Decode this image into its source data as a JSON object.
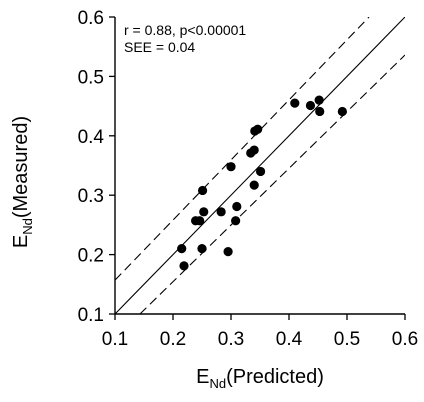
{
  "chart_data": {
    "type": "scatter",
    "title": "",
    "xlabel": {
      "main": "E",
      "sub": "Nd",
      "rest": "(Predicted)"
    },
    "ylabel": {
      "main": "E",
      "sub": "Nd",
      "rest": "(Measured)"
    },
    "xlim": [
      0.1,
      0.6
    ],
    "ylim": [
      0.1,
      0.6
    ],
    "x_ticks": [
      "0.1",
      "0.2",
      "0.3",
      "0.4",
      "0.5",
      "0.6"
    ],
    "y_ticks": [
      "0.1",
      "0.2",
      "0.3",
      "0.4",
      "0.5",
      "0.6"
    ],
    "annotations": [
      "r = 0.88,  p<0.00001",
      "SEE = 0.04"
    ],
    "grid": false,
    "lines": [
      {
        "kind": "identity",
        "style": "solid",
        "points": [
          [
            0.1,
            0.1
          ],
          [
            0.6,
            0.6
          ]
        ]
      },
      {
        "kind": "upper-bound",
        "style": "dashed",
        "points": [
          [
            0.1,
            0.157
          ],
          [
            0.538,
            0.6
          ]
        ]
      },
      {
        "kind": "lower-bound",
        "style": "dashed",
        "points": [
          [
            0.143,
            0.1
          ],
          [
            0.6,
            0.536
          ]
        ]
      }
    ],
    "points": [
      {
        "x": 0.215,
        "y": 0.21
      },
      {
        "x": 0.219,
        "y": 0.181
      },
      {
        "x": 0.239,
        "y": 0.257
      },
      {
        "x": 0.246,
        "y": 0.257
      },
      {
        "x": 0.25,
        "y": 0.21
      },
      {
        "x": 0.251,
        "y": 0.308
      },
      {
        "x": 0.253,
        "y": 0.272
      },
      {
        "x": 0.283,
        "y": 0.272
      },
      {
        "x": 0.295,
        "y": 0.205
      },
      {
        "x": 0.3,
        "y": 0.348
      },
      {
        "x": 0.308,
        "y": 0.257
      },
      {
        "x": 0.31,
        "y": 0.281
      },
      {
        "x": 0.334,
        "y": 0.371
      },
      {
        "x": 0.34,
        "y": 0.376
      },
      {
        "x": 0.34,
        "y": 0.317
      },
      {
        "x": 0.341,
        "y": 0.408
      },
      {
        "x": 0.346,
        "y": 0.411
      },
      {
        "x": 0.351,
        "y": 0.34
      },
      {
        "x": 0.41,
        "y": 0.455
      },
      {
        "x": 0.437,
        "y": 0.451
      },
      {
        "x": 0.452,
        "y": 0.46
      },
      {
        "x": 0.453,
        "y": 0.441
      },
      {
        "x": 0.492,
        "y": 0.441
      }
    ]
  }
}
